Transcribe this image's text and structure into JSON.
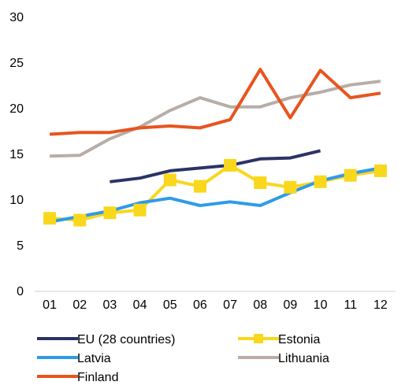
{
  "chart_data": {
    "type": "line",
    "title": "",
    "xlabel": "",
    "ylabel": "",
    "categories": [
      "01",
      "02",
      "03",
      "04",
      "05",
      "06",
      "07",
      "08",
      "09",
      "10",
      "11",
      "12"
    ],
    "ylim": [
      0,
      30
    ],
    "yticks": [
      "0",
      "5",
      "10",
      "15",
      "20",
      "25",
      "30"
    ],
    "grid": false,
    "legend_position": "bottom",
    "series": [
      {
        "name": "EU (28 countries)",
        "color": "#2b3366",
        "marker": "none",
        "values": [
          null,
          null,
          12.0,
          12.4,
          13.2,
          13.5,
          13.8,
          14.5,
          14.6,
          15.4,
          null,
          null
        ]
      },
      {
        "name": "Estonia",
        "color": "#f9d71c",
        "marker": "square",
        "values": [
          8.0,
          7.8,
          8.6,
          8.9,
          12.2,
          11.5,
          13.8,
          11.9,
          11.4,
          12.0,
          12.7,
          13.2
        ]
      },
      {
        "name": "Latvia",
        "color": "#2e9bea",
        "marker": "none",
        "values": [
          7.6,
          8.2,
          8.8,
          9.7,
          10.2,
          9.4,
          9.8,
          9.4,
          10.8,
          12.1,
          12.9,
          13.5
        ]
      },
      {
        "name": "Lithuania",
        "color": "#b8ada6",
        "marker": "none",
        "values": [
          14.8,
          14.9,
          16.7,
          18.0,
          19.8,
          21.2,
          20.2,
          20.2,
          21.2,
          21.8,
          22.6,
          23.0
        ]
      },
      {
        "name": "Finland",
        "color": "#e8541e",
        "marker": "none",
        "values": [
          17.2,
          17.4,
          17.4,
          17.9,
          18.1,
          17.9,
          18.8,
          24.3,
          19.0,
          24.2,
          21.2,
          21.7
        ]
      }
    ]
  }
}
